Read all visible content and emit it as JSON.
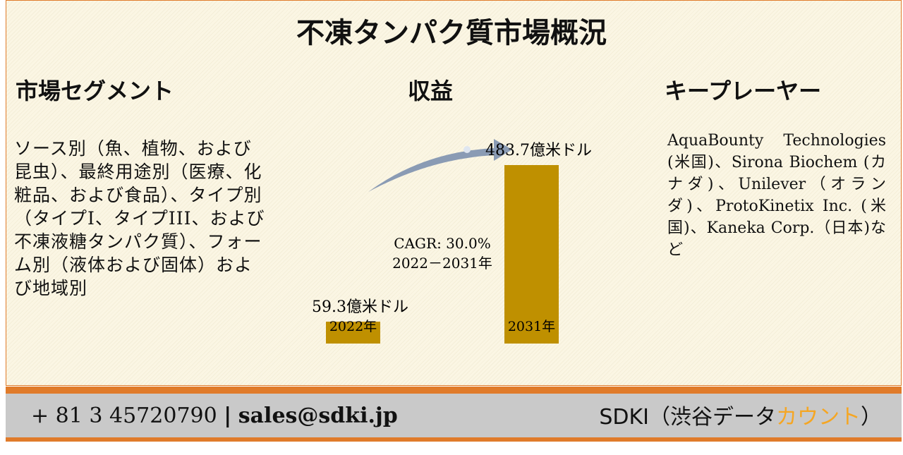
{
  "title": "不凍タンパク質市場概況",
  "segments": {
    "heading": "市場セグメント",
    "text": "ソース別（魚、植物、および昆虫）、最終用途別（医療、化粧品、および食品）、タイプ別（タイプI、タイプIII、および不凍液糖タンパク質）、フォーム別（液体および固体）および地域別"
  },
  "revenue": {
    "heading": "収益",
    "categories": [
      "2022年",
      "2031年"
    ],
    "values": [
      59.3,
      483.7
    ],
    "value_labels": [
      "59.3億米ドル",
      "483.7億米ドル"
    ],
    "color": "#bf9000",
    "cagr": "CAGR: 30.0%",
    "period": "2022－2031年"
  },
  "players": {
    "heading": "キープレーヤー",
    "text": "AquaBounty Technologies (米国)、Sirona Biochem (カナダ)、Unilever（オランダ)、ProtoKinetix Inc. (米国)、Kaneka Corp.（日本)など"
  },
  "footer": {
    "phone": "+ 81 3 45720790",
    "separator": "|",
    "email": "sales@sdki.jp",
    "brand": "SDKI（渋谷データ",
    "brand_highlight": "カウント",
    "brand_close": "）"
  }
}
